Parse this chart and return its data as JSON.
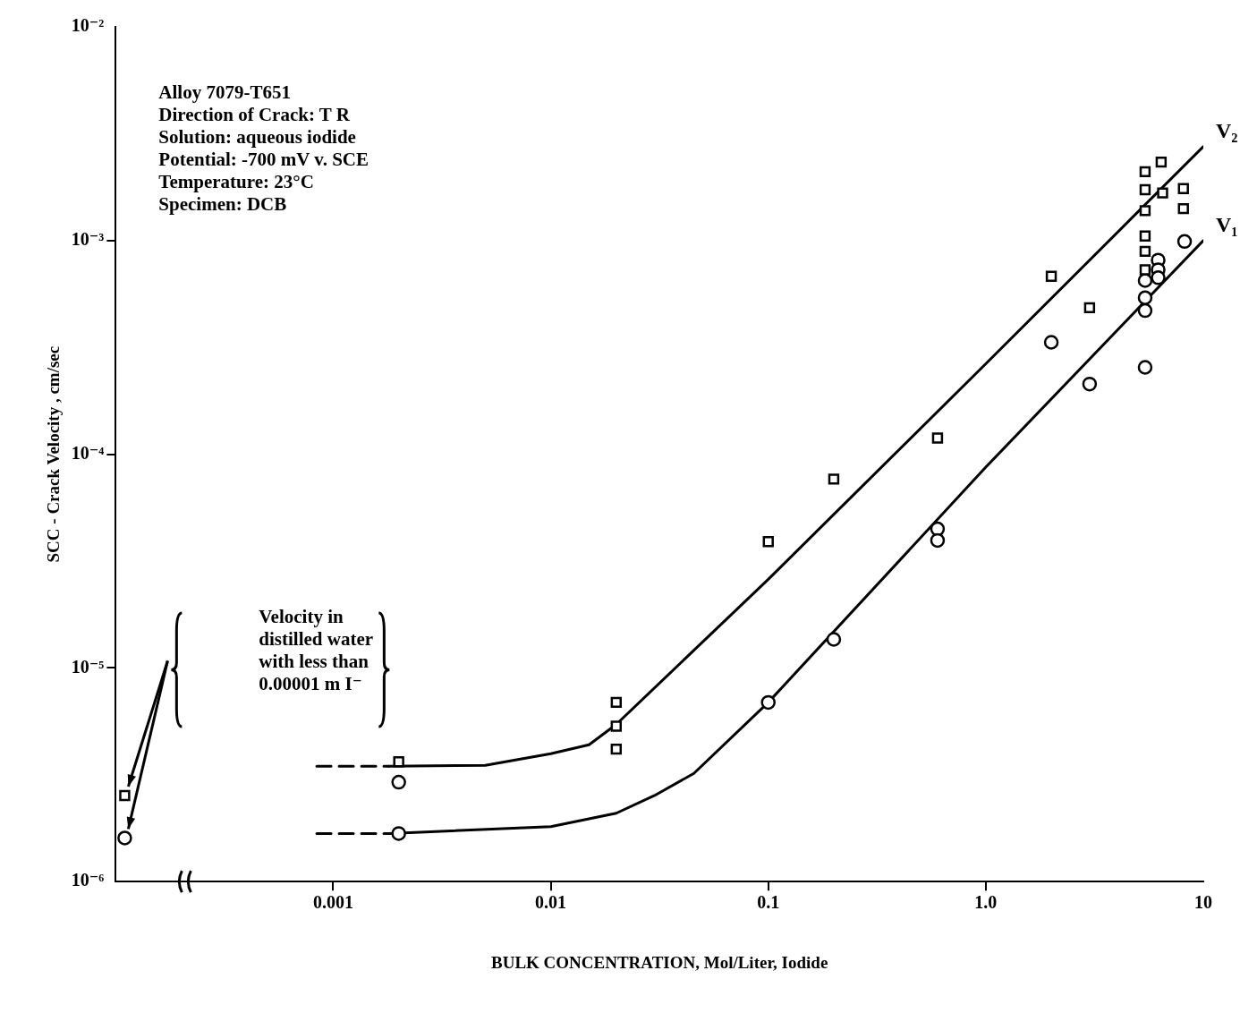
{
  "chart_data": {
    "type": "scatter",
    "xlabel": "BULK CONCENTRATION, Mol/Liter, Iodide",
    "ylabel": "SCC - Crack Velocity , cm/sec",
    "log": "xy",
    "xlim": [
      0.0001,
      10
    ],
    "ylim": [
      1e-06,
      0.01
    ],
    "xticks": [
      0.001,
      0.01,
      0.1,
      {
        "value": 1,
        "label": "1.0"
      },
      10
    ],
    "yticks": [
      {
        "value": 1e-06,
        "label": "10⁻⁶"
      },
      {
        "value": 1e-05,
        "label": "10⁻⁵"
      },
      {
        "value": 0.0001,
        "label": "10⁻⁴"
      },
      {
        "value": 0.001,
        "label": "10⁻³"
      },
      {
        "value": 0.01,
        "label": "10⁻²"
      }
    ],
    "grid": false,
    "legend": false,
    "series": [
      {
        "marker": "square",
        "color": "#000000",
        "x": [
          0.00011,
          0.002,
          0.02,
          0.02,
          0.02,
          0.1,
          0.2,
          0.6,
          2,
          3,
          5.4,
          5.4,
          5.4,
          5.4,
          5.4,
          5.4,
          6.4,
          6.5
        ],
        "values": [
          2.53e-06,
          3.64e-06,
          6.9e-06,
          5.34e-06,
          4.17e-06,
          3.9e-05,
          7.65e-05,
          0.000119,
          0.00068,
          0.000485,
          0.0021,
          0.00173,
          0.00138,
          0.00105,
          0.00089,
          0.00073,
          0.00233,
          0.00167
        ]
      },
      {
        "marker": "square",
        "color": "#000000",
        "x": [
          8.1,
          8.1
        ],
        "values": [
          0.00175,
          0.00141
        ]
      },
      {
        "marker": "circle",
        "color": "#000000",
        "x": [
          0.00011,
          0.002,
          0.002,
          0.1,
          0.2,
          0.6,
          0.6,
          2,
          3,
          5.4,
          5.4,
          5.4,
          5.4,
          6.2,
          6.2,
          6.2
        ],
        "values": [
          1.6e-06,
          2.92e-06,
          1.68e-06,
          6.9e-06,
          1.36e-05,
          4.47e-05,
          3.95e-05,
          0.000334,
          0.000213,
          0.000255,
          0.00065,
          0.00054,
          0.00047,
          0.00081,
          0.00073,
          0.00067
        ]
      },
      {
        "marker": "circle",
        "color": "#000000",
        "x": [
          8.2
        ],
        "values": [
          0.00099
        ]
      },
      {
        "type": "line",
        "marker": "none",
        "line_style": "dashed",
        "color": "#000000",
        "x": [
          0.00084,
          0.0018
        ],
        "values": [
          3.47e-06,
          3.47e-06
        ]
      },
      {
        "type": "line",
        "name": "V₂",
        "marker": "none",
        "line_style": "solid",
        "color": "#000000",
        "x": [
          0.0018,
          0.005,
          0.01,
          0.015,
          0.02,
          0.1,
          1,
          10
        ],
        "values": [
          3.47e-06,
          3.5e-06,
          3.97e-06,
          4.37e-06,
          5.44e-06,
          2.6e-05,
          0.000265,
          0.00275
        ]
      },
      {
        "type": "line",
        "marker": "none",
        "line_style": "dashed",
        "color": "#000000",
        "x": [
          0.00084,
          0.0018
        ],
        "values": [
          1.68e-06,
          1.68e-06
        ]
      },
      {
        "type": "line",
        "name": "V₁",
        "marker": "none",
        "line_style": "solid",
        "color": "#000000",
        "x": [
          0.0018,
          0.01,
          0.02,
          0.03,
          0.0455,
          0.1,
          1,
          10
        ],
        "values": [
          1.68e-06,
          1.81e-06,
          2.09e-06,
          2.53e-06,
          3.21e-06,
          6.9e-06,
          8.7e-05,
          0.001
        ]
      }
    ],
    "annotations": [
      "Alloy 7079-T651\nDirection of Crack: T R\nSolution: aqueous iodide\nPotential: -700 mV v. SCE\nTemperature: 23°C\nSpecimen: DCB",
      "Velocity in\ndistilled water\nwith less than\n0.00001 m I⁻"
    ]
  }
}
